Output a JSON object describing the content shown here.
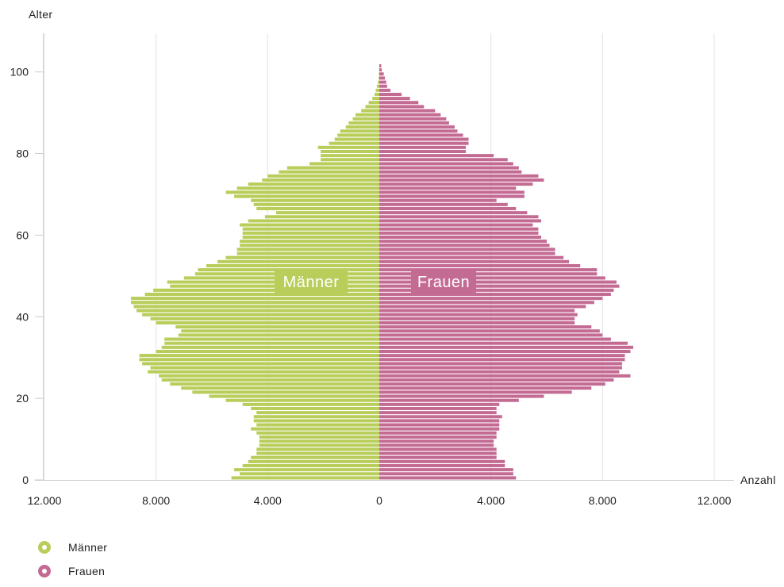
{
  "chart_data": {
    "type": "bar",
    "subtype": "population-pyramid",
    "y_axis_title": "Alter",
    "x_axis_title": "Anzahl",
    "x_ticks": [
      "12.000",
      "8.000",
      "4.000",
      "0",
      "4.000",
      "8.000",
      "12.000"
    ],
    "y_ticks": [
      "0",
      "20",
      "40",
      "60",
      "80",
      "100"
    ],
    "xlim": [
      -12000,
      12000
    ],
    "ylim": [
      0,
      102
    ],
    "grid": true,
    "legend_position": "bottom-left",
    "ages": [
      0,
      1,
      2,
      3,
      4,
      5,
      6,
      7,
      8,
      9,
      10,
      11,
      12,
      13,
      14,
      15,
      16,
      17,
      18,
      19,
      20,
      21,
      22,
      23,
      24,
      25,
      26,
      27,
      28,
      29,
      30,
      31,
      32,
      33,
      34,
      35,
      36,
      37,
      38,
      39,
      40,
      41,
      42,
      43,
      44,
      45,
      46,
      47,
      48,
      49,
      50,
      51,
      52,
      53,
      54,
      55,
      56,
      57,
      58,
      59,
      60,
      61,
      62,
      63,
      64,
      65,
      66,
      67,
      68,
      69,
      70,
      71,
      72,
      73,
      74,
      75,
      76,
      77,
      78,
      79,
      80,
      81,
      82,
      83,
      84,
      85,
      86,
      87,
      88,
      89,
      90,
      91,
      92,
      93,
      94,
      95,
      96,
      97,
      98,
      99,
      100,
      101
    ],
    "series": [
      {
        "name": "Männer",
        "color": "#b8cd5a",
        "label": "Männer",
        "values": [
          5300,
          5000,
          5200,
          4900,
          4700,
          4600,
          4400,
          4400,
          4300,
          4300,
          4300,
          4400,
          4600,
          4400,
          4500,
          4500,
          4400,
          4600,
          4900,
          5500,
          6100,
          6700,
          7100,
          7500,
          7800,
          7900,
          8300,
          8200,
          8500,
          8600,
          8600,
          8000,
          7800,
          7700,
          7700,
          7200,
          7100,
          7300,
          8000,
          8200,
          8500,
          8700,
          8800,
          8900,
          8900,
          8400,
          8100,
          7500,
          7600,
          7000,
          6600,
          6500,
          6200,
          5800,
          5500,
          5100,
          5100,
          5000,
          5000,
          4900,
          4900,
          4900,
          5000,
          4700,
          4100,
          3700,
          4400,
          4500,
          4600,
          5200,
          5500,
          5100,
          4700,
          4200,
          4000,
          3600,
          3300,
          2500,
          2100,
          2100,
          2100,
          2200,
          1800,
          1600,
          1500,
          1400,
          1200,
          1100,
          950,
          850,
          650,
          500,
          380,
          250,
          170,
          130,
          90,
          50,
          25,
          15,
          8,
          4
        ]
      },
      {
        "name": "Frauen",
        "color": "#c46b94",
        "label": "Frauen",
        "values": [
          4900,
          4800,
          4800,
          4500,
          4500,
          4200,
          4200,
          4200,
          4100,
          4100,
          4200,
          4200,
          4300,
          4300,
          4300,
          4400,
          4200,
          4200,
          4300,
          5000,
          5900,
          6900,
          7600,
          8100,
          8400,
          9000,
          8600,
          8700,
          8700,
          8800,
          8800,
          9000,
          9100,
          8900,
          8300,
          8000,
          7900,
          7600,
          7000,
          7000,
          7100,
          7000,
          7400,
          7700,
          8000,
          8300,
          8400,
          8600,
          8500,
          8100,
          7800,
          7800,
          7200,
          6800,
          6600,
          6300,
          6300,
          6100,
          6000,
          5800,
          5700,
          5700,
          5500,
          5800,
          5700,
          5300,
          4900,
          4600,
          4200,
          5200,
          5200,
          4900,
          5500,
          5900,
          5700,
          5100,
          5000,
          4800,
          4600,
          4100,
          3100,
          3100,
          3200,
          3200,
          3000,
          2800,
          2700,
          2500,
          2400,
          2200,
          2000,
          1600,
          1400,
          1100,
          800,
          400,
          280,
          250,
          200,
          160,
          90,
          70
        ]
      }
    ]
  }
}
